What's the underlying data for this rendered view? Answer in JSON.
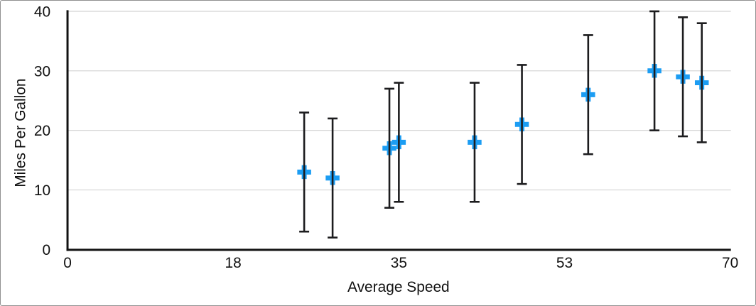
{
  "chart_data": {
    "type": "scatter",
    "xlabel": "Average Speed",
    "ylabel": "Miles Per Gallon",
    "xlim": [
      0,
      70
    ],
    "ylim": [
      0,
      40
    ],
    "x_ticks": [
      {
        "pos": 0,
        "label": "0"
      },
      {
        "pos": 17.5,
        "label": "18"
      },
      {
        "pos": 35,
        "label": "35"
      },
      {
        "pos": 52.5,
        "label": "53"
      },
      {
        "pos": 70,
        "label": "70"
      }
    ],
    "y_ticks": [
      {
        "pos": 0,
        "label": "0"
      },
      {
        "pos": 10,
        "label": "10"
      },
      {
        "pos": 20,
        "label": "20"
      },
      {
        "pos": 30,
        "label": "30"
      },
      {
        "pos": 40,
        "label": "40"
      }
    ],
    "grid": {
      "horizontal": true,
      "vertical": false
    },
    "series": [
      {
        "marker": "plus",
        "marker_color": "#1C9DF3",
        "error_bars": {
          "type": "fixed",
          "plus": 10,
          "minus": 10,
          "color": "#1C1C1E"
        },
        "points": [
          {
            "x": 25,
            "y": 13
          },
          {
            "x": 28,
            "y": 12
          },
          {
            "x": 34,
            "y": 17
          },
          {
            "x": 35,
            "y": 18
          },
          {
            "x": 43,
            "y": 18
          },
          {
            "x": 48,
            "y": 21
          },
          {
            "x": 55,
            "y": 26
          },
          {
            "x": 62,
            "y": 30
          },
          {
            "x": 65,
            "y": 29
          },
          {
            "x": 67,
            "y": 28
          }
        ]
      }
    ],
    "colors": {
      "axis": "#111111",
      "gridline": "#D7D7D7",
      "text": "#111111",
      "marker": "#1C9DF3",
      "error_bar": "#1C1C1E",
      "figure_border": "#909090",
      "background": "#FFFFFF"
    }
  }
}
